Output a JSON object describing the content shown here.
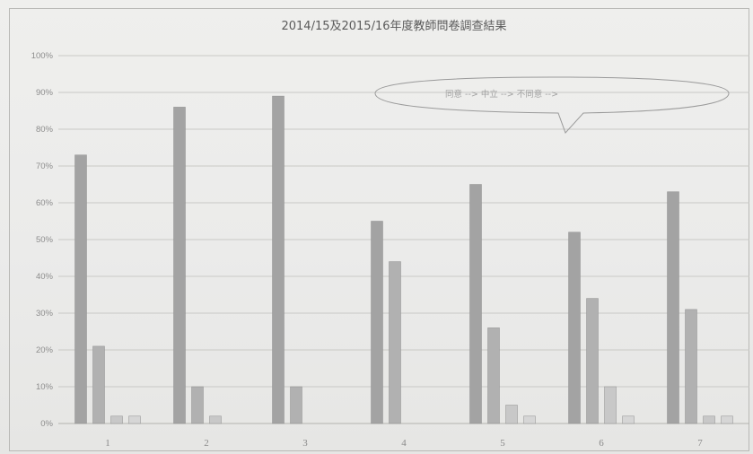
{
  "chart_data": {
    "type": "bar",
    "title": "2014/15及2015/16年度教師問卷調查結果",
    "xlabel": "",
    "ylabel": "",
    "ylim": [
      0,
      100
    ],
    "y_ticks": [
      "0%",
      "10%",
      "20%",
      "30%",
      "40%",
      "50%",
      "60%",
      "70%",
      "80%",
      "90%",
      "100%"
    ],
    "categories": [
      "1",
      "2",
      "3",
      "4",
      "5",
      "6",
      "7"
    ],
    "series": [
      {
        "color": "#a3a3a3",
        "values": [
          73,
          86,
          89,
          55,
          65,
          52,
          63
        ]
      },
      {
        "color": "#b1b1b1",
        "values": [
          21,
          10,
          10,
          44,
          26,
          34,
          31
        ]
      },
      {
        "color": "#c8c8c8",
        "values": [
          2,
          2,
          0,
          0,
          5,
          10,
          2
        ]
      },
      {
        "color": "#d6d6d6",
        "values": [
          2,
          0,
          0,
          0,
          2,
          2,
          2
        ]
      }
    ],
    "grid": true,
    "legend_callout": "同意 --> 中立 --> 不同意 -->"
  }
}
